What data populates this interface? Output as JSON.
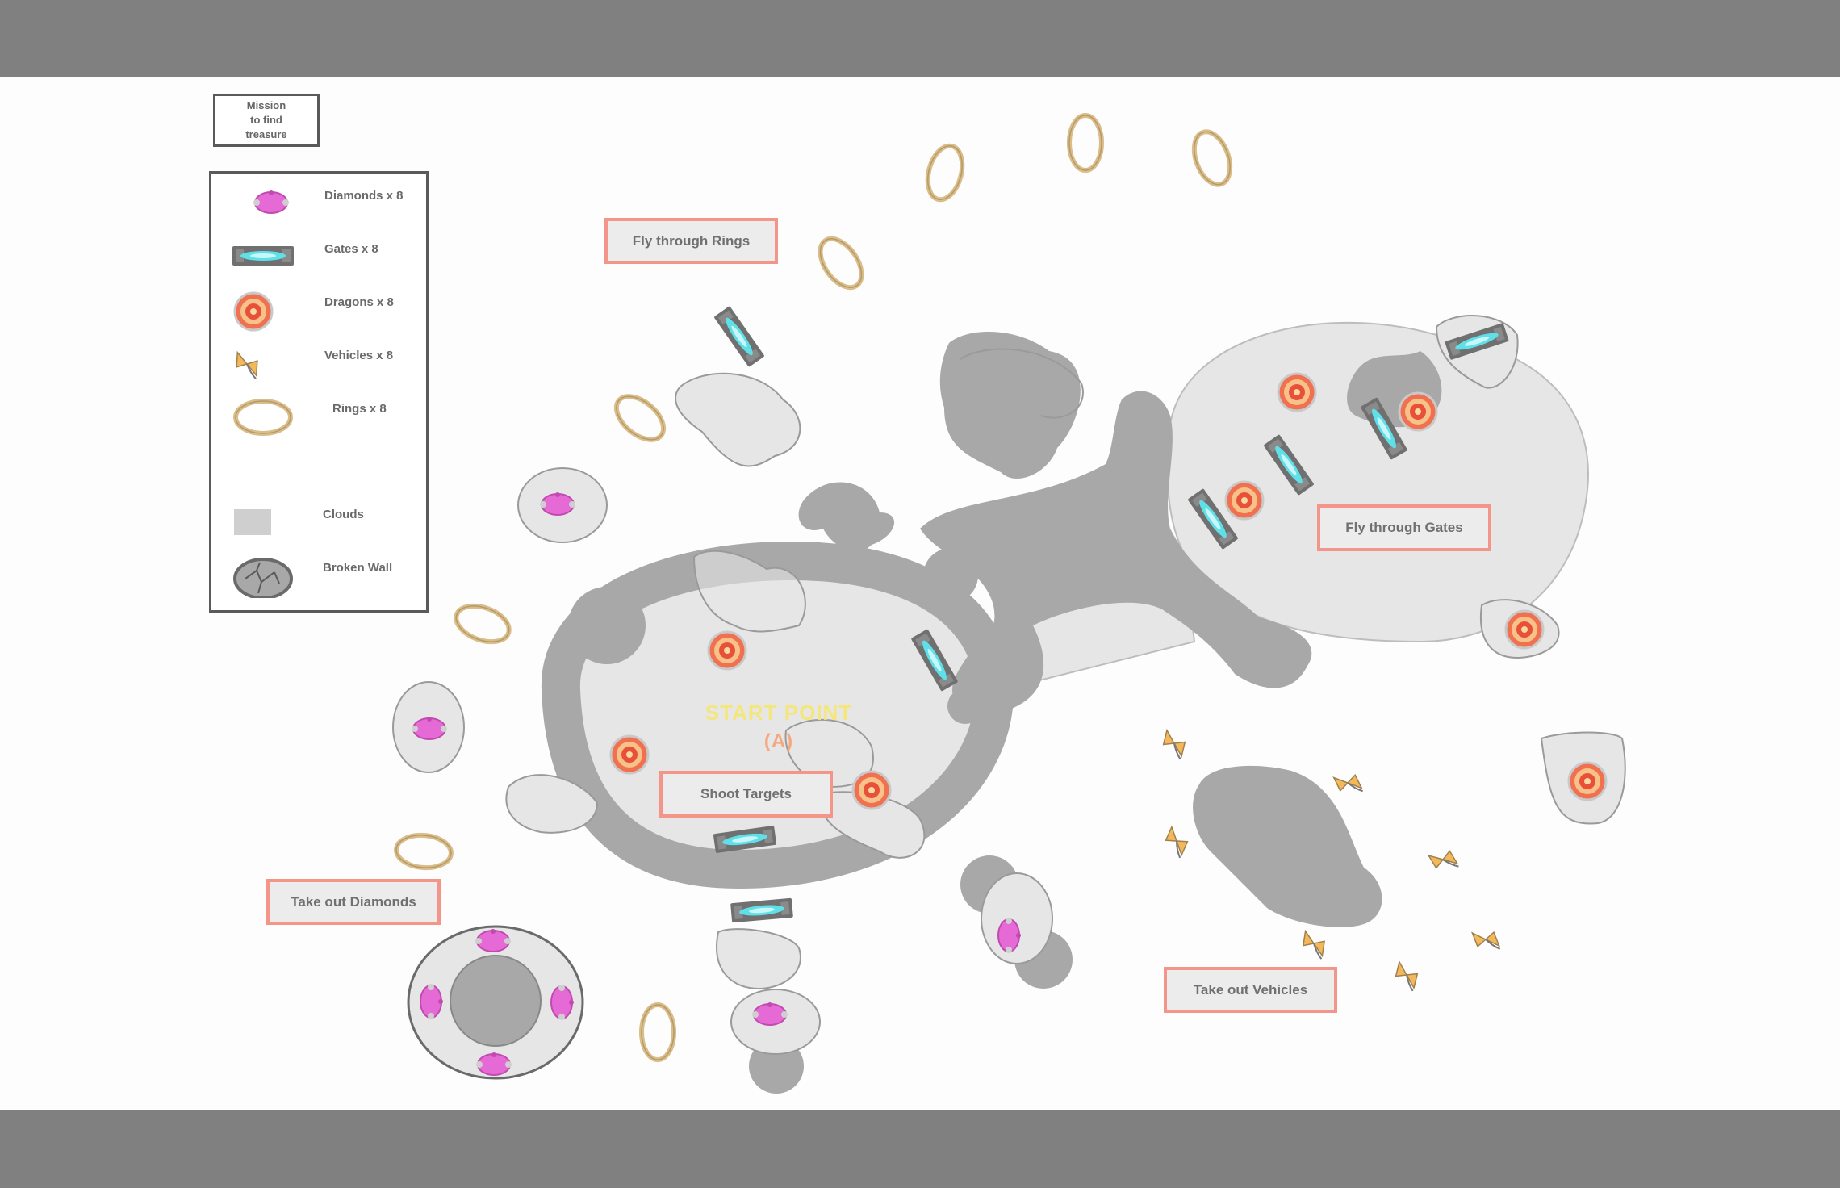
{
  "title_box": {
    "lines": [
      "Mission",
      "to find",
      "treasure"
    ]
  },
  "legend": {
    "items": [
      {
        "key": "gem",
        "icon": "pink-gem-icon",
        "label": "Diamonds x 8"
      },
      {
        "key": "gate",
        "icon": "cyan-gate-icon",
        "label": "Gates x 8"
      },
      {
        "key": "target",
        "icon": "target-icon",
        "label": "Dragons x 8"
      },
      {
        "key": "bow",
        "icon": "bow-tie-icon",
        "label": "Vehicles x 8"
      },
      {
        "key": "ring",
        "icon": "ring-icon",
        "label": "Rings x 8"
      },
      {
        "key": "cloud",
        "icon": "cloud-swatch-icon",
        "label": "Clouds"
      },
      {
        "key": "wall",
        "icon": "broken-wall-icon",
        "label": "Broken Wall"
      }
    ]
  },
  "labels": {
    "fly_through_rings": "Fly through Rings",
    "fly_through_gates": "Fly through Gates",
    "shoot_targets": "Shoot Targets",
    "take_out_diamonds": "Take out Diamonds",
    "take_out_vehicles": "Take out Vehicles"
  },
  "start": {
    "label": "START POINT",
    "marker": "(A)"
  },
  "colors": {
    "page_bar": "#808080",
    "map_background": "#fdfdfd",
    "cloud": "#e6e6e6",
    "rock": "#a8a8a8",
    "gem": "#e66ad6",
    "gate_light": "#5fe0e8",
    "target_ring": "#f07050",
    "ring": "#d9bd8a",
    "bow": "#f3b85a",
    "label_border": "#f4958a",
    "start_text": "#f5e67c"
  }
}
